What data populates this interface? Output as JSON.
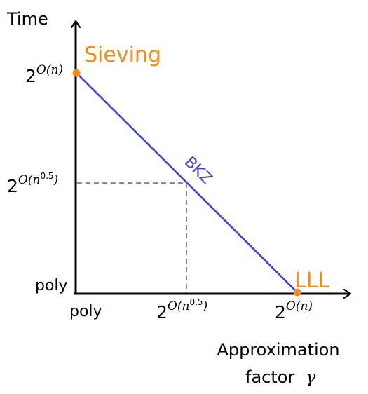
{
  "axes": {
    "y_title": "Time",
    "x_title_line1": "Approximation",
    "x_title_line2": "factor",
    "x_title_symbol": "γ"
  },
  "y_ticks": {
    "top_base": "2",
    "top_exp": "O(n)",
    "mid_base": "2",
    "mid_exp_a": "O(n",
    "mid_exp_b": "0.5",
    "mid_exp_c": ")",
    "bottom": "poly"
  },
  "x_ticks": {
    "left": "poly",
    "mid_base": "2",
    "mid_exp_a": "O(n",
    "mid_exp_b": "0.5",
    "mid_exp_c": ")",
    "right_base": "2",
    "right_exp": "O(n)"
  },
  "points": {
    "top_left_label": "Sieving",
    "bottom_right_label": "LLL",
    "line_label": "BKZ"
  },
  "colors": {
    "axis": "#000000",
    "line": "#4040d8",
    "point": "#f08c1e",
    "point_label": "#f08c1e",
    "guide": "#444444"
  }
}
